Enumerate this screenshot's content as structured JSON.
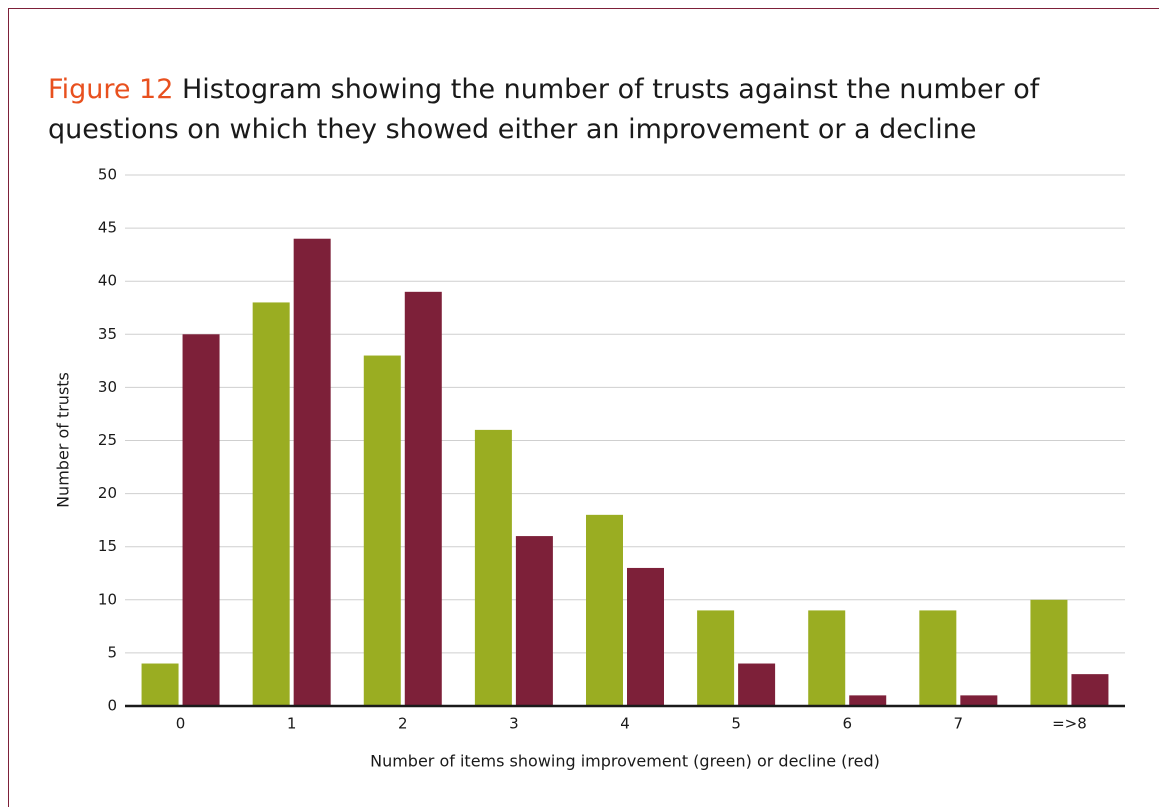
{
  "chart_data": {
    "type": "bar",
    "title_label": "Figure 12",
    "title": "Histogram showing the number of trusts against the number of questions on which they showed either an improvement or a decline",
    "x_label": "Number of items showing improvement (green) or decline (red)",
    "y_label": "Number of trusts",
    "categories": [
      "0",
      "1",
      "2",
      "3",
      "4",
      "5",
      "6",
      "7",
      "=>8"
    ],
    "series": [
      {
        "color": "#9aad22",
        "values": [
          4,
          38,
          33,
          26,
          18,
          9,
          9,
          9,
          10
        ]
      },
      {
        "color": "#7d2039",
        "values": [
          35,
          44,
          39,
          16,
          13,
          4,
          1,
          1,
          3
        ]
      }
    ],
    "ylim": [
      0,
      50
    ],
    "yticks": [
      0,
      5,
      10,
      15,
      20,
      25,
      30,
      35,
      40,
      45,
      50
    ],
    "grid": true
  }
}
